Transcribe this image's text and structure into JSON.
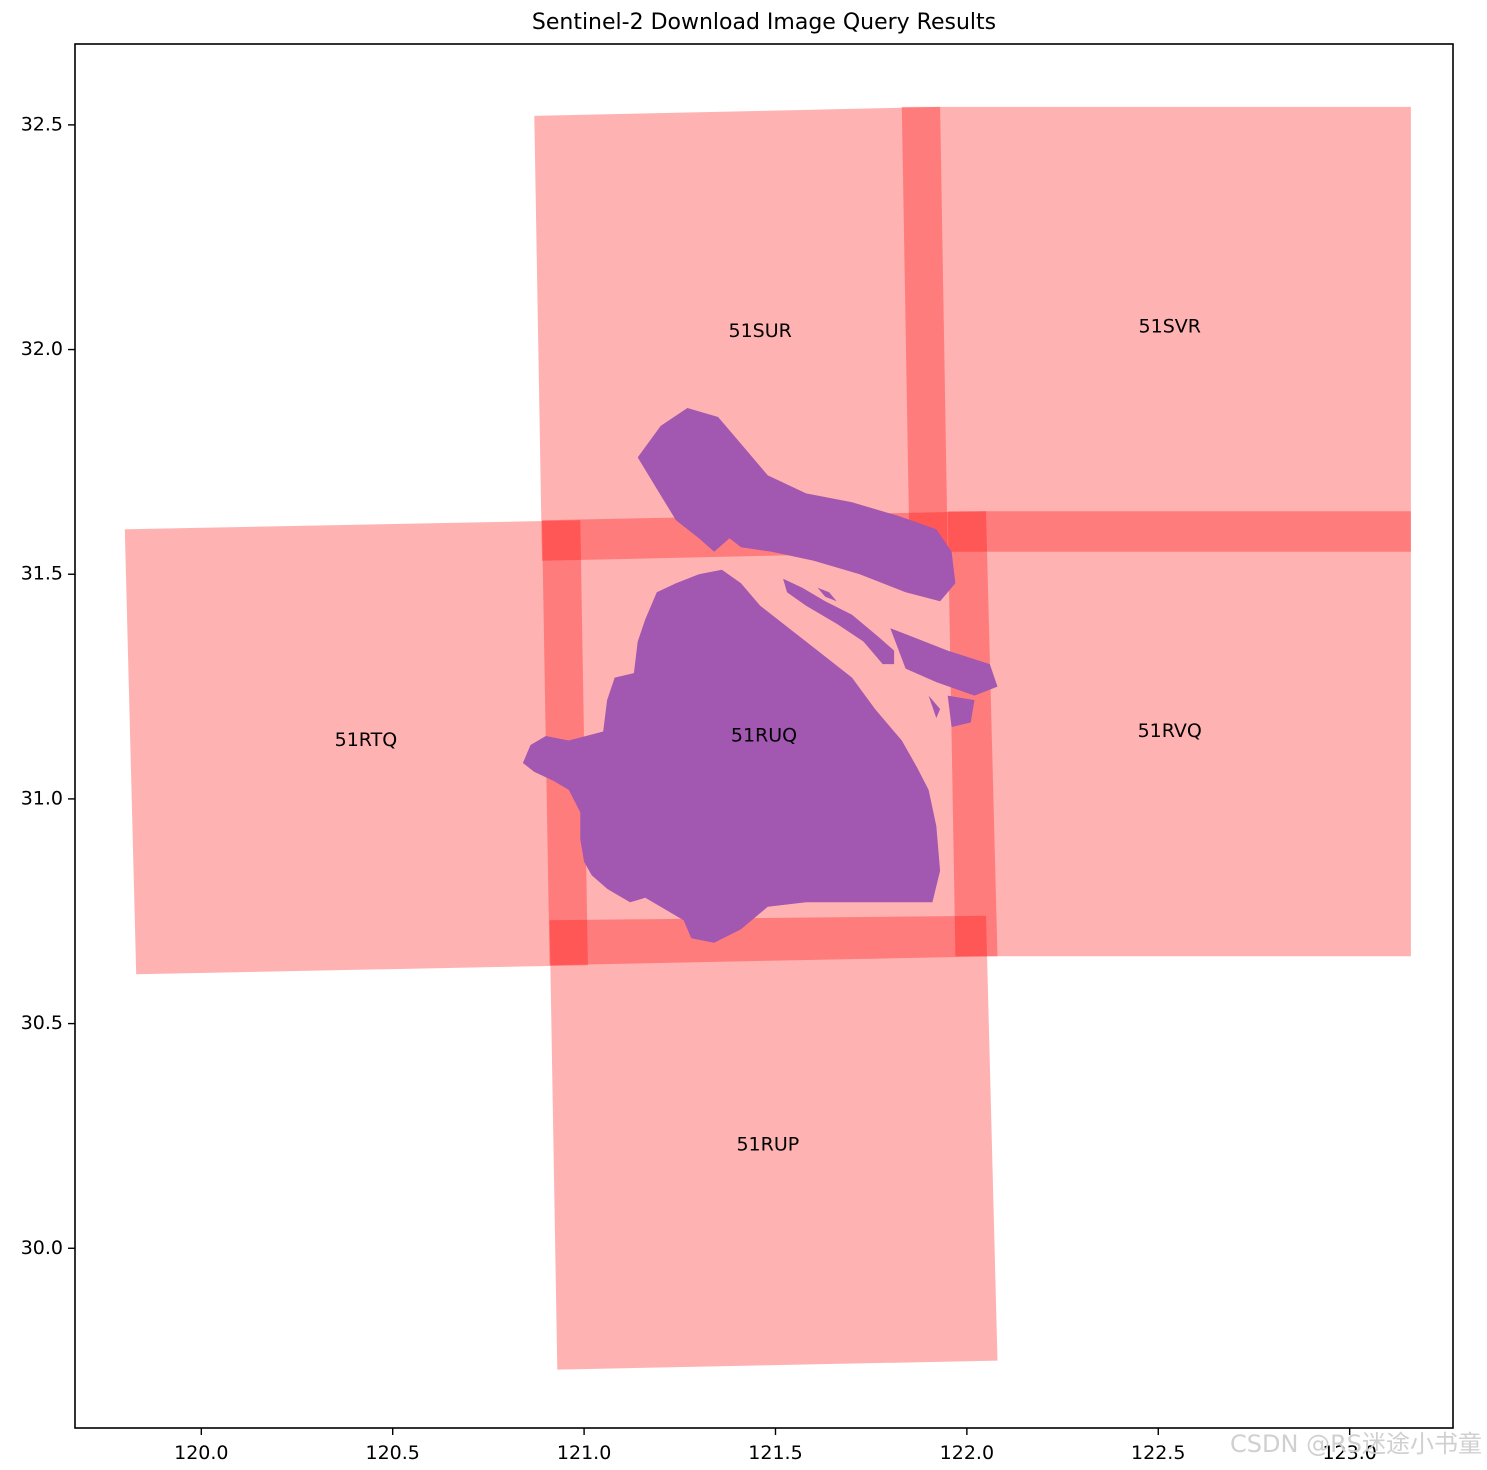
{
  "chart_data": {
    "type": "map",
    "title": "Sentinel-2 Download Image Query Results",
    "xlabel": "",
    "ylabel": "",
    "xlim": [
      119.67,
      123.27
    ],
    "ylim": [
      29.6,
      32.68
    ],
    "x_ticks": [
      120.0,
      120.5,
      121.0,
      121.5,
      122.0,
      122.5,
      123.0
    ],
    "x_tick_labels": [
      "120.0",
      "120.5",
      "121.0",
      "121.5",
      "122.0",
      "122.5",
      "123.0"
    ],
    "y_ticks": [
      30.0,
      30.5,
      31.0,
      31.5,
      32.0,
      32.5
    ],
    "y_tick_labels": [
      "30.0",
      "30.5",
      "31.0",
      "31.5",
      "32.0",
      "32.5"
    ],
    "grid": false,
    "tile_color": "#ff0000",
    "tile_opacity": 0.3,
    "region_color": "#a257b0",
    "tiles": [
      {
        "name": "51SUR",
        "corners": [
          [
            120.87,
            32.52
          ],
          [
            121.93,
            32.54
          ],
          [
            121.95,
            31.55
          ],
          [
            120.89,
            31.53
          ]
        ],
        "label_pos": [
          121.46,
          32.04
        ]
      },
      {
        "name": "51SVR",
        "corners": [
          [
            121.83,
            32.54
          ],
          [
            123.16,
            32.54
          ],
          [
            123.16,
            31.55
          ],
          [
            121.85,
            31.55
          ]
        ],
        "label_pos": [
          122.53,
          32.05
        ]
      },
      {
        "name": "51RTQ",
        "corners": [
          [
            119.8,
            31.6
          ],
          [
            120.99,
            31.62
          ],
          [
            121.01,
            30.63
          ],
          [
            119.83,
            30.61
          ]
        ],
        "label_pos": [
          120.43,
          31.13
        ]
      },
      {
        "name": "51RUQ",
        "corners": [
          [
            120.89,
            31.62
          ],
          [
            122.05,
            31.64
          ],
          [
            122.08,
            30.65
          ],
          [
            120.91,
            30.63
          ]
        ],
        "label_pos": [
          121.47,
          31.14
        ]
      },
      {
        "name": "51RVQ",
        "corners": [
          [
            121.95,
            31.64
          ],
          [
            123.16,
            31.64
          ],
          [
            123.16,
            30.65
          ],
          [
            121.97,
            30.65
          ]
        ],
        "label_pos": [
          122.53,
          31.15
        ]
      },
      {
        "name": "51RUP",
        "corners": [
          [
            120.91,
            30.73
          ],
          [
            122.05,
            30.74
          ],
          [
            122.08,
            29.75
          ],
          [
            120.93,
            29.73
          ]
        ],
        "label_pos": [
          121.48,
          30.23
        ]
      }
    ],
    "region": {
      "mainland": [
        [
          120.86,
          31.12
        ],
        [
          120.9,
          31.14
        ],
        [
          120.96,
          31.13
        ],
        [
          121.05,
          31.15
        ],
        [
          121.06,
          31.22
        ],
        [
          121.08,
          31.27
        ],
        [
          121.13,
          31.28
        ],
        [
          121.14,
          31.35
        ],
        [
          121.16,
          31.4
        ],
        [
          121.19,
          31.46
        ],
        [
          121.24,
          31.48
        ],
        [
          121.3,
          31.5
        ],
        [
          121.36,
          31.51
        ],
        [
          121.41,
          31.48
        ],
        [
          121.46,
          31.43
        ],
        [
          121.55,
          31.37
        ],
        [
          121.64,
          31.31
        ],
        [
          121.7,
          31.27
        ],
        [
          121.76,
          31.2
        ],
        [
          121.83,
          31.13
        ],
        [
          121.87,
          31.07
        ],
        [
          121.9,
          31.02
        ],
        [
          121.92,
          30.94
        ],
        [
          121.93,
          30.84
        ],
        [
          121.91,
          30.77
        ],
        [
          121.86,
          30.77
        ],
        [
          121.77,
          30.77
        ],
        [
          121.68,
          30.77
        ],
        [
          121.58,
          30.77
        ],
        [
          121.48,
          30.76
        ],
        [
          121.41,
          30.71
        ],
        [
          121.34,
          30.68
        ],
        [
          121.28,
          30.69
        ],
        [
          121.26,
          30.73
        ],
        [
          121.22,
          30.75
        ],
        [
          121.16,
          30.78
        ],
        [
          121.12,
          30.77
        ],
        [
          121.06,
          30.8
        ],
        [
          121.02,
          30.83
        ],
        [
          121.0,
          30.86
        ],
        [
          120.99,
          30.91
        ],
        [
          120.99,
          30.97
        ],
        [
          120.96,
          31.02
        ],
        [
          120.92,
          31.04
        ],
        [
          120.87,
          31.06
        ],
        [
          120.84,
          31.08
        ]
      ],
      "islands": [
        [
          [
            121.14,
            31.76
          ],
          [
            121.2,
            31.83
          ],
          [
            121.27,
            31.87
          ],
          [
            121.35,
            31.85
          ],
          [
            121.4,
            31.8
          ],
          [
            121.48,
            31.72
          ],
          [
            121.58,
            31.68
          ],
          [
            121.7,
            31.66
          ],
          [
            121.82,
            31.63
          ],
          [
            121.92,
            31.6
          ],
          [
            121.96,
            31.55
          ],
          [
            121.97,
            31.48
          ],
          [
            121.93,
            31.44
          ],
          [
            121.84,
            31.46
          ],
          [
            121.72,
            31.5
          ],
          [
            121.6,
            31.53
          ],
          [
            121.49,
            31.55
          ],
          [
            121.41,
            31.56
          ],
          [
            121.38,
            31.58
          ],
          [
            121.34,
            31.55
          ],
          [
            121.3,
            31.58
          ],
          [
            121.24,
            31.62
          ],
          [
            121.19,
            31.69
          ]
        ],
        [
          [
            121.52,
            31.49
          ],
          [
            121.57,
            31.47
          ],
          [
            121.63,
            31.44
          ],
          [
            121.7,
            31.41
          ],
          [
            121.77,
            31.36
          ],
          [
            121.81,
            31.33
          ],
          [
            121.81,
            31.3
          ],
          [
            121.78,
            31.3
          ],
          [
            121.73,
            31.35
          ],
          [
            121.66,
            31.39
          ],
          [
            121.58,
            31.43
          ],
          [
            121.53,
            31.46
          ]
        ],
        [
          [
            121.61,
            31.47
          ],
          [
            121.64,
            31.46
          ],
          [
            121.66,
            31.44
          ],
          [
            121.63,
            31.45
          ]
        ],
        [
          [
            121.8,
            31.38
          ],
          [
            121.86,
            31.36
          ],
          [
            121.95,
            31.33
          ],
          [
            122.06,
            31.3
          ],
          [
            122.08,
            31.25
          ],
          [
            122.02,
            31.23
          ],
          [
            121.92,
            31.26
          ],
          [
            121.84,
            31.29
          ]
        ],
        [
          [
            121.9,
            31.23
          ],
          [
            121.93,
            31.2
          ],
          [
            121.92,
            31.18
          ]
        ],
        [
          [
            121.95,
            31.23
          ],
          [
            122.02,
            31.22
          ],
          [
            122.01,
            31.17
          ],
          [
            121.96,
            31.16
          ]
        ]
      ]
    },
    "watermark": "CSDN @RS迷途小书童"
  }
}
